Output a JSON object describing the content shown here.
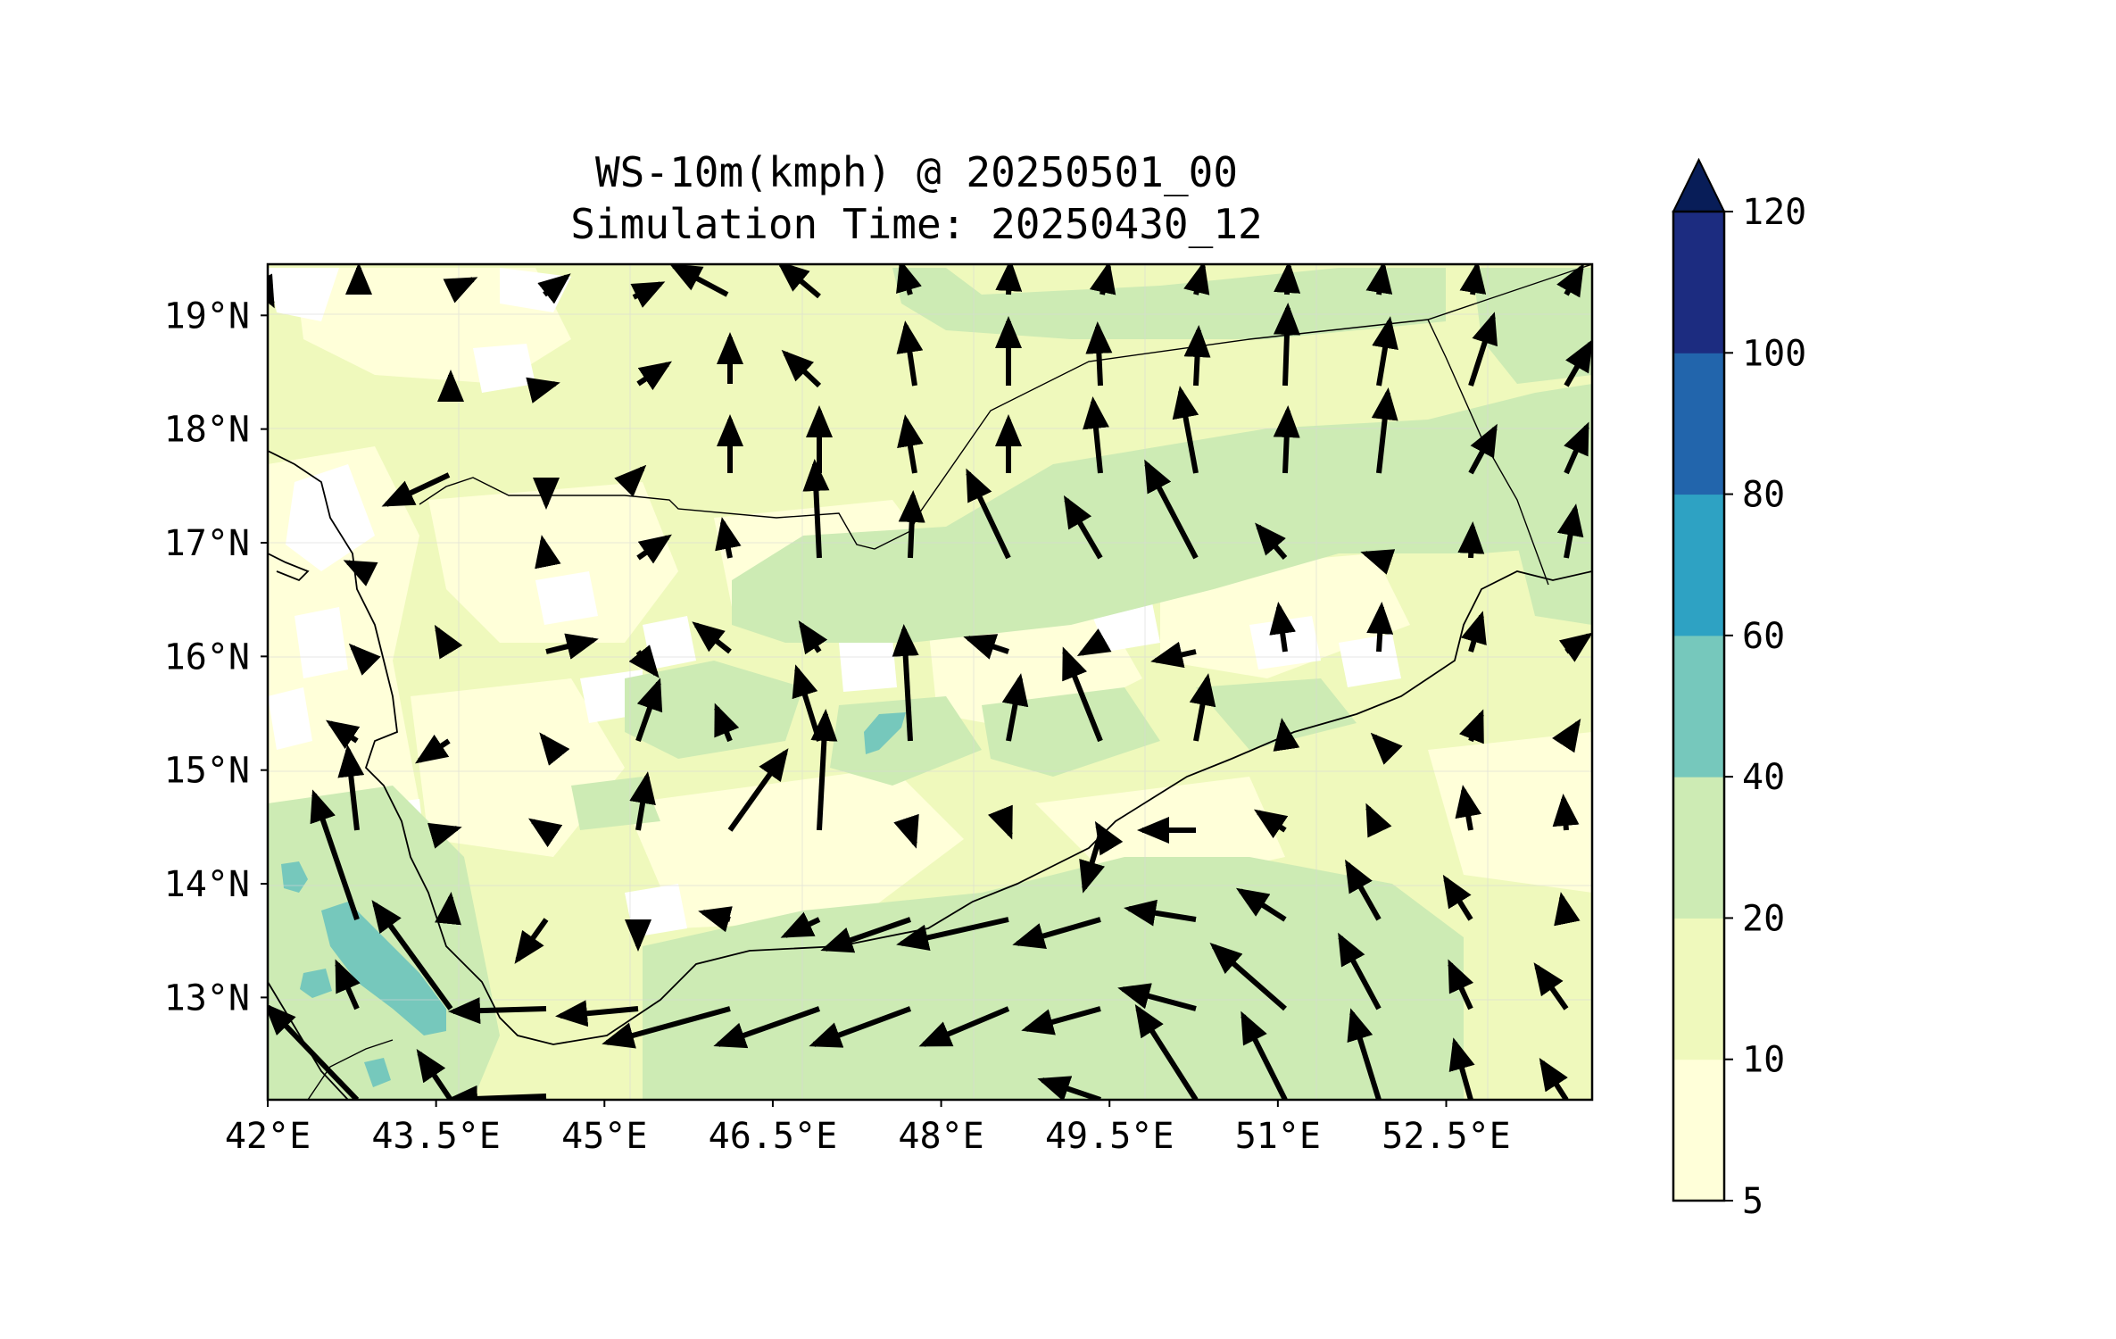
{
  "map": {
    "title_line1": "WS-10m(kmph) @ 20250501_00",
    "title_line2": "Simulation Time: 20250430_12",
    "extent": {
      "lon_min": 42.0,
      "lon_max": 53.8,
      "lat_min": 12.1,
      "lat_max": 19.45
    },
    "lon_ticks": [
      {
        "value": 42.0,
        "label": "42°E"
      },
      {
        "value": 43.5,
        "label": "43.5°E"
      },
      {
        "value": 45.0,
        "label": "45°E"
      },
      {
        "value": 46.5,
        "label": "46.5°E"
      },
      {
        "value": 48.0,
        "label": "48°E"
      },
      {
        "value": 49.5,
        "label": "49.5°E"
      },
      {
        "value": 51.0,
        "label": "51°E"
      },
      {
        "value": 52.5,
        "label": "52.5°E"
      }
    ],
    "lat_ticks": [
      {
        "value": 19,
        "label": "19°N"
      },
      {
        "value": 18,
        "label": "18°N"
      },
      {
        "value": 17,
        "label": "17°N"
      },
      {
        "value": 16,
        "label": "16°N"
      },
      {
        "value": 15,
        "label": "15°N"
      },
      {
        "value": 14,
        "label": "14°N"
      },
      {
        "value": 13,
        "label": "13°N"
      }
    ],
    "colors": {
      "5-10": "#ffffd9",
      "10-20": "#eff9bc",
      "20-40": "#cdebb4",
      "40-60": "#76c8bc",
      "60-80": "#2ea2c3",
      "80-100": "#2265ac",
      "100-120": "#1c2c80",
      "over": "#081d58",
      "calm": "#ffffff"
    }
  },
  "colorbar": {
    "levels": [
      5,
      10,
      20,
      40,
      60,
      80,
      100,
      120
    ],
    "labels": [
      "5",
      "10",
      "20",
      "40",
      "60",
      "80",
      "100",
      "120"
    ],
    "extend": "max"
  }
}
